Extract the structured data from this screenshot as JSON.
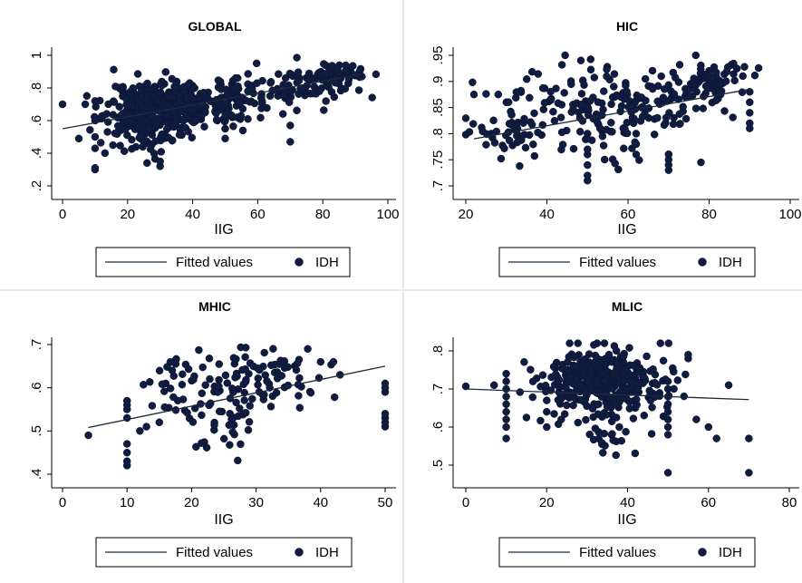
{
  "chart_data": [
    {
      "type": "scatter",
      "title": "GLOBAL",
      "xlabel": "IIG",
      "ylabel": "",
      "xlim": [
        0,
        100
      ],
      "ylim": [
        0.2,
        1.0
      ],
      "xticks": [
        0,
        20,
        40,
        60,
        80,
        100
      ],
      "xtick_labels": [
        "0",
        "20",
        "40",
        "60",
        "80",
        "100"
      ],
      "yticks": [
        0.2,
        0.4,
        0.6,
        0.8,
        1.0
      ],
      "ytick_labels": [
        ".2",
        ".4",
        ".6",
        ".8",
        "1"
      ],
      "grid": false,
      "legend": {
        "placement": "bottom",
        "entries": [
          "Fitted values",
          "IDH"
        ]
      },
      "series": [
        {
          "name": "Fitted values",
          "kind": "line",
          "x": [
            0,
            92
          ],
          "y": [
            0.55,
            0.885
          ]
        },
        {
          "name": "IDH",
          "kind": "scatter",
          "seed": 11,
          "clusters": [
            {
              "cx": 30,
              "cy": 0.68,
              "sx": 8,
              "sy": 0.08,
              "n": 380
            },
            {
              "cx": 48,
              "cy": 0.74,
              "sx": 9,
              "sy": 0.08,
              "n": 90
            },
            {
              "cx": 70,
              "cy": 0.8,
              "sx": 9,
              "sy": 0.06,
              "n": 70
            },
            {
              "cx": 84,
              "cy": 0.88,
              "sx": 4,
              "sy": 0.03,
              "n": 70
            },
            {
              "cx": 24,
              "cy": 0.5,
              "sx": 6,
              "sy": 0.06,
              "n": 40
            }
          ],
          "points": [
            [
              0,
              0.7
            ],
            [
              5,
              0.49
            ],
            [
              7,
              0.7
            ],
            [
              10,
              0.3
            ],
            [
              10,
              0.31
            ],
            [
              10,
              0.43
            ],
            [
              10,
              0.5
            ],
            [
              10,
              0.6
            ],
            [
              10,
              0.72
            ],
            [
              30,
              0.32
            ],
            [
              30,
              0.35
            ],
            [
              26,
              0.34
            ],
            [
              50,
              0.49
            ],
            [
              50,
              0.55
            ],
            [
              50,
              0.6
            ],
            [
              50,
              0.62
            ],
            [
              50,
              0.7
            ],
            [
              70,
              0.47
            ],
            [
              70,
              0.57
            ],
            [
              88,
              0.85
            ],
            [
              90,
              0.88
            ],
            [
              92,
              0.87
            ]
          ]
        }
      ]
    },
    {
      "type": "scatter",
      "title": "HIC",
      "xlabel": "IIG",
      "ylabel": "",
      "xlim": [
        20,
        100
      ],
      "ylim": [
        0.7,
        0.95
      ],
      "xticks": [
        20,
        40,
        60,
        80,
        100
      ],
      "xtick_labels": [
        "20",
        "40",
        "60",
        "80",
        "100"
      ],
      "yticks": [
        0.7,
        0.75,
        0.8,
        0.85,
        0.9,
        0.95
      ],
      "ytick_labels": [
        ".7",
        ".75",
        ".8",
        ".85",
        ".9",
        ".95"
      ],
      "grid": false,
      "legend": {
        "placement": "bottom",
        "entries": [
          "Fitted values",
          "IDH"
        ]
      },
      "series": [
        {
          "name": "Fitted values",
          "kind": "line",
          "x": [
            22,
            90
          ],
          "y": [
            0.79,
            0.885
          ]
        },
        {
          "name": "IDH",
          "kind": "scatter",
          "seed": 23,
          "clusters": [
            {
              "cx": 45,
              "cy": 0.84,
              "sx": 11,
              "sy": 0.04,
              "n": 110
            },
            {
              "cx": 62,
              "cy": 0.85,
              "sx": 9,
              "sy": 0.04,
              "n": 90
            },
            {
              "cx": 80,
              "cy": 0.9,
              "sx": 5,
              "sy": 0.025,
              "n": 70
            },
            {
              "cx": 30,
              "cy": 0.8,
              "sx": 4,
              "sy": 0.02,
              "n": 25
            }
          ],
          "points": [
            [
              22,
              0.875
            ],
            [
              25,
              0.876
            ],
            [
              28,
              0.875
            ],
            [
              30,
              0.86
            ],
            [
              50,
              0.71
            ],
            [
              50,
              0.72
            ],
            [
              50,
              0.74
            ],
            [
              50,
              0.76
            ],
            [
              50,
              0.77
            ],
            [
              50,
              0.79
            ],
            [
              50,
              0.8
            ],
            [
              62,
              0.76
            ],
            [
              62,
              0.78
            ],
            [
              62,
              0.8
            ],
            [
              70,
              0.73
            ],
            [
              70,
              0.74
            ],
            [
              70,
              0.75
            ],
            [
              70,
              0.76
            ],
            [
              78,
              0.745
            ],
            [
              90,
              0.81
            ],
            [
              90,
              0.82
            ],
            [
              90,
              0.84
            ],
            [
              90,
              0.86
            ],
            [
              90,
              0.88
            ]
          ]
        }
      ]
    },
    {
      "type": "scatter",
      "title": "MHIC",
      "xlabel": "IIG",
      "ylabel": "",
      "xlim": [
        0,
        50
      ],
      "ylim": [
        0.4,
        0.7
      ],
      "xticks": [
        0,
        10,
        20,
        30,
        40,
        50
      ],
      "xtick_labels": [
        "0",
        "10",
        "20",
        "30",
        "40",
        "50"
      ],
      "yticks": [
        0.4,
        0.5,
        0.6,
        0.7
      ],
      "ytick_labels": [
        ".4",
        ".5",
        ".6",
        ".7"
      ],
      "grid": false,
      "legend": {
        "placement": "bottom",
        "entries": [
          "Fitted values",
          "IDH"
        ]
      },
      "series": [
        {
          "name": "Fitted values",
          "kind": "line",
          "x": [
            4,
            50
          ],
          "y": [
            0.508,
            0.65
          ]
        },
        {
          "name": "IDH",
          "kind": "scatter",
          "seed": 37,
          "clusters": [
            {
              "cx": 22,
              "cy": 0.59,
              "sx": 4,
              "sy": 0.04,
              "n": 60
            },
            {
              "cx": 31,
              "cy": 0.63,
              "sx": 5,
              "sy": 0.04,
              "n": 70
            },
            {
              "cx": 24,
              "cy": 0.5,
              "sx": 2,
              "sy": 0.04,
              "n": 20
            }
          ],
          "points": [
            [
              4,
              0.49
            ],
            [
              10,
              0.42
            ],
            [
              10,
              0.43
            ],
            [
              10,
              0.45
            ],
            [
              10,
              0.47
            ],
            [
              10,
              0.53
            ],
            [
              10,
              0.55
            ],
            [
              10,
              0.56
            ],
            [
              10,
              0.57
            ],
            [
              12,
              0.5
            ],
            [
              13,
              0.51
            ],
            [
              15,
              0.52
            ],
            [
              16,
              0.61
            ],
            [
              17,
              0.64
            ],
            [
              38,
              0.69
            ],
            [
              40,
              0.66
            ],
            [
              42,
              0.66
            ],
            [
              43,
              0.63
            ],
            [
              50,
              0.51
            ],
            [
              50,
              0.52
            ],
            [
              50,
              0.53
            ],
            [
              50,
              0.54
            ],
            [
              50,
              0.59
            ],
            [
              50,
              0.6
            ],
            [
              50,
              0.61
            ]
          ]
        }
      ]
    },
    {
      "type": "scatter",
      "title": "MLIC",
      "xlabel": "IIG",
      "ylabel": "",
      "xlim": [
        0,
        80
      ],
      "ylim": [
        0.48,
        0.82
      ],
      "xticks": [
        0,
        20,
        40,
        60,
        80
      ],
      "xtick_labels": [
        "0",
        "20",
        "40",
        "60",
        "80"
      ],
      "yticks": [
        0.5,
        0.6,
        0.7,
        0.8
      ],
      "ytick_labels": [
        ".5",
        ".6",
        ".7",
        ".8"
      ],
      "grid": false,
      "legend": {
        "placement": "bottom",
        "entries": [
          "Fitted values",
          "IDH"
        ]
      },
      "series": [
        {
          "name": "Fitted values",
          "kind": "line",
          "x": [
            0,
            70
          ],
          "y": [
            0.7,
            0.672
          ]
        },
        {
          "name": "IDH",
          "kind": "scatter",
          "seed": 53,
          "clusters": [
            {
              "cx": 32,
              "cy": 0.715,
              "sx": 7,
              "sy": 0.045,
              "n": 300
            },
            {
              "cx": 44,
              "cy": 0.71,
              "sx": 6,
              "sy": 0.05,
              "n": 70
            },
            {
              "cx": 36,
              "cy": 0.56,
              "sx": 3,
              "sy": 0.03,
              "n": 18
            }
          ],
          "points": [
            [
              0,
              0.707
            ],
            [
              7,
              0.71
            ],
            [
              10,
              0.57
            ],
            [
              10,
              0.6
            ],
            [
              10,
              0.62
            ],
            [
              10,
              0.64
            ],
            [
              10,
              0.66
            ],
            [
              10,
              0.68
            ],
            [
              10,
              0.7
            ],
            [
              10,
              0.72
            ],
            [
              10,
              0.74
            ],
            [
              15,
              0.625
            ],
            [
              20,
              0.6
            ],
            [
              20,
              0.64
            ],
            [
              20,
              0.67
            ],
            [
              50,
              0.48
            ],
            [
              50,
              0.58
            ],
            [
              50,
              0.6
            ],
            [
              50,
              0.62
            ],
            [
              50,
              0.64
            ],
            [
              50,
              0.66
            ],
            [
              50,
              0.68
            ],
            [
              50,
              0.7
            ],
            [
              50,
              0.72
            ],
            [
              55,
              0.78
            ],
            [
              55,
              0.79
            ],
            [
              57,
              0.62
            ],
            [
              60,
              0.6
            ],
            [
              62,
              0.57
            ],
            [
              65,
              0.71
            ],
            [
              70,
              0.48
            ],
            [
              70,
              0.57
            ]
          ]
        }
      ]
    }
  ]
}
